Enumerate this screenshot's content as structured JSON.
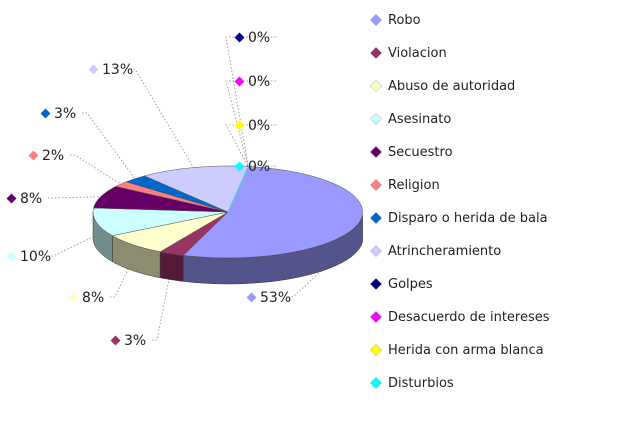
{
  "chart_data": {
    "type": "pie",
    "three_d": true,
    "legend_position": "right",
    "grid": false,
    "slices": [
      {
        "name": "Robo",
        "percent": 53,
        "label": "53%",
        "color": "#9999ff"
      },
      {
        "name": "Violacion",
        "percent": 3,
        "label": "3%",
        "color": "#993366"
      },
      {
        "name": "Abuso de autoridad",
        "percent": 8,
        "label": "8%",
        "color": "#ffffcc"
      },
      {
        "name": "Asesinato",
        "percent": 10,
        "label": "10%",
        "color": "#ccffff"
      },
      {
        "name": "Secuestro",
        "percent": 8,
        "label": "8%",
        "color": "#660066"
      },
      {
        "name": "Religion",
        "percent": 2,
        "label": "2%",
        "color": "#ff8080"
      },
      {
        "name": "Disparo o herida de bala",
        "percent": 3,
        "label": "3%",
        "color": "#0066cc"
      },
      {
        "name": "Atrincheramiento",
        "percent": 13,
        "label": "13%",
        "color": "#ccccff"
      },
      {
        "name": "Golpes",
        "percent": 0,
        "label": "0%",
        "color": "#000080"
      },
      {
        "name": "Desacuerdo de intereses",
        "percent": 0,
        "label": "0%",
        "color": "#ff00ff"
      },
      {
        "name": "Herida con arma blanca",
        "percent": 0,
        "label": "0%",
        "color": "#ffff00"
      },
      {
        "name": "Disturbios",
        "percent": 0,
        "label": "0%",
        "color": "#00ffff"
      }
    ]
  }
}
